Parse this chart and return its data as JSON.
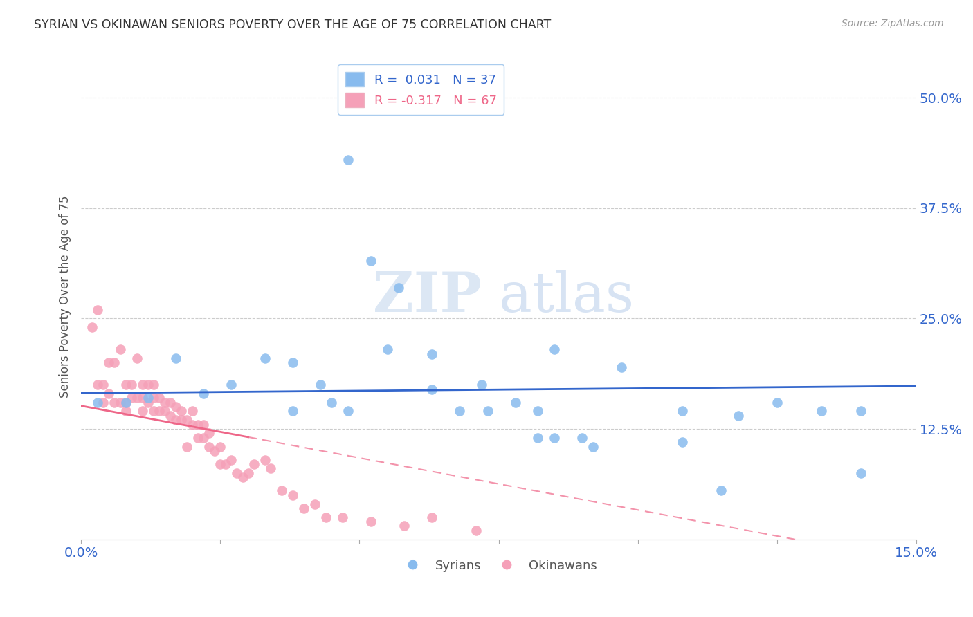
{
  "title": "SYRIAN VS OKINAWAN SENIORS POVERTY OVER THE AGE OF 75 CORRELATION CHART",
  "source": "Source: ZipAtlas.com",
  "ylabel": "Seniors Poverty Over the Age of 75",
  "ytick_labels": [
    "12.5%",
    "25.0%",
    "37.5%",
    "50.0%"
  ],
  "ytick_values": [
    0.125,
    0.25,
    0.375,
    0.5
  ],
  "xlim": [
    0.0,
    0.15
  ],
  "ylim": [
    0.0,
    0.55
  ],
  "syrian_color": "#88BBEE",
  "okinawan_color": "#F5A0B8",
  "syrian_line_color": "#3366CC",
  "okinawan_line_color": "#EE6688",
  "okinawan_line_dash": [
    6,
    4
  ],
  "legend_syrian_label": "R =  0.031   N = 37",
  "legend_okinawan_label": "R = -0.317   N = 67",
  "legend_syrians": "Syrians",
  "legend_okinawans": "Okinawans",
  "watermark_zip": "ZIP",
  "watermark_atlas": "atlas",
  "background_color": "#FFFFFF",
  "grid_color": "#CCCCCC",
  "title_color": "#333333",
  "axis_label_color": "#555555",
  "tick_color": "#3366CC",
  "syrian_R": 0.031,
  "syrian_N": 37,
  "okinawan_R": -0.317,
  "okinawan_N": 67,
  "syrians_x": [
    0.003,
    0.008,
    0.012,
    0.017,
    0.022,
    0.027,
    0.033,
    0.038,
    0.038,
    0.043,
    0.045,
    0.048,
    0.055,
    0.063,
    0.068,
    0.073,
    0.078,
    0.082,
    0.082,
    0.085,
    0.09,
    0.092,
    0.048,
    0.052,
    0.057,
    0.063,
    0.072,
    0.085,
    0.097,
    0.108,
    0.118,
    0.125,
    0.133,
    0.14,
    0.14,
    0.108,
    0.115
  ],
  "syrians_y": [
    0.155,
    0.155,
    0.16,
    0.205,
    0.165,
    0.175,
    0.205,
    0.2,
    0.145,
    0.175,
    0.155,
    0.145,
    0.215,
    0.21,
    0.145,
    0.145,
    0.155,
    0.115,
    0.145,
    0.115,
    0.115,
    0.105,
    0.43,
    0.315,
    0.285,
    0.17,
    0.175,
    0.215,
    0.195,
    0.145,
    0.14,
    0.155,
    0.145,
    0.145,
    0.075,
    0.11,
    0.055
  ],
  "okinawans_x": [
    0.002,
    0.003,
    0.003,
    0.004,
    0.004,
    0.005,
    0.005,
    0.006,
    0.006,
    0.007,
    0.007,
    0.008,
    0.008,
    0.008,
    0.009,
    0.009,
    0.01,
    0.01,
    0.011,
    0.011,
    0.011,
    0.012,
    0.012,
    0.013,
    0.013,
    0.013,
    0.014,
    0.014,
    0.015,
    0.015,
    0.016,
    0.016,
    0.017,
    0.017,
    0.018,
    0.018,
    0.019,
    0.019,
    0.02,
    0.02,
    0.021,
    0.021,
    0.022,
    0.022,
    0.023,
    0.023,
    0.024,
    0.025,
    0.025,
    0.026,
    0.027,
    0.028,
    0.029,
    0.03,
    0.031,
    0.033,
    0.034,
    0.036,
    0.038,
    0.04,
    0.042,
    0.044,
    0.047,
    0.052,
    0.058,
    0.063,
    0.071
  ],
  "okinawans_y": [
    0.24,
    0.26,
    0.175,
    0.155,
    0.175,
    0.165,
    0.2,
    0.155,
    0.2,
    0.155,
    0.215,
    0.155,
    0.175,
    0.145,
    0.16,
    0.175,
    0.16,
    0.205,
    0.16,
    0.175,
    0.145,
    0.155,
    0.175,
    0.16,
    0.145,
    0.175,
    0.145,
    0.16,
    0.155,
    0.145,
    0.14,
    0.155,
    0.135,
    0.15,
    0.145,
    0.135,
    0.105,
    0.135,
    0.13,
    0.145,
    0.115,
    0.13,
    0.115,
    0.13,
    0.12,
    0.105,
    0.1,
    0.085,
    0.105,
    0.085,
    0.09,
    0.075,
    0.07,
    0.075,
    0.085,
    0.09,
    0.08,
    0.055,
    0.05,
    0.035,
    0.04,
    0.025,
    0.025,
    0.02,
    0.015,
    0.025,
    0.01
  ]
}
